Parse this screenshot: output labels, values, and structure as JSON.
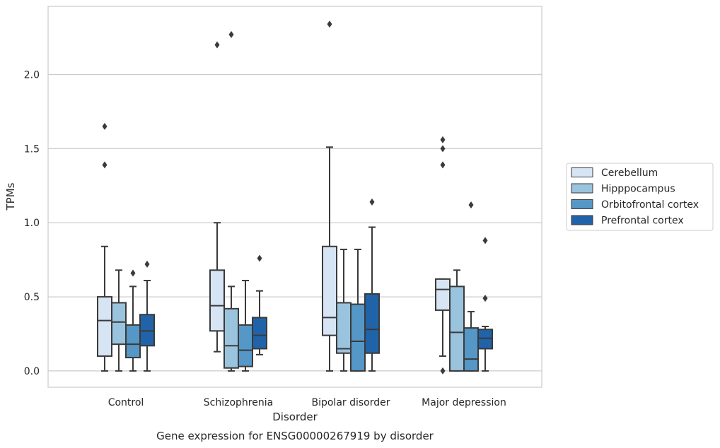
{
  "chart_data": {
    "type": "box",
    "xlabel": "Disorder",
    "ylabel": "TPMs",
    "caption": "Gene expression for ENSG00000267919 by disorder",
    "ylim": [
      -0.11,
      2.46
    ],
    "yticks": [
      "0.0",
      "0.5",
      "1.0",
      "1.5",
      "2.0"
    ],
    "grid": "horizontal",
    "legend_position": "right",
    "categories": [
      "Control",
      "Schizophrenia",
      "Bipolar disorder",
      "Major depression"
    ],
    "series": [
      {
        "name": "Cerebellum",
        "color": "#d6e4f3",
        "boxes": [
          {
            "whislo": 0.0,
            "q1": 0.1,
            "med": 0.34,
            "q3": 0.5,
            "whishi": 0.84,
            "fliers": [
              1.39,
              1.65
            ]
          },
          {
            "whislo": 0.13,
            "q1": 0.27,
            "med": 0.44,
            "q3": 0.68,
            "whishi": 1.0,
            "fliers": [
              2.2
            ]
          },
          {
            "whislo": 0.0,
            "q1": 0.24,
            "med": 0.36,
            "q3": 0.84,
            "whishi": 1.51,
            "fliers": [
              2.34
            ]
          },
          {
            "whislo": 0.1,
            "q1": 0.41,
            "med": 0.55,
            "q3": 0.62,
            "whishi": 0.62,
            "fliers": [
              0.0,
              1.39,
              1.5,
              1.56
            ]
          }
        ]
      },
      {
        "name": "Hipppocampus",
        "color": "#9ac3dd",
        "boxes": [
          {
            "whislo": 0.0,
            "q1": 0.18,
            "med": 0.33,
            "q3": 0.46,
            "whishi": 0.68,
            "fliers": []
          },
          {
            "whislo": 0.0,
            "q1": 0.02,
            "med": 0.17,
            "q3": 0.42,
            "whishi": 0.57,
            "fliers": [
              2.27
            ]
          },
          {
            "whislo": 0.0,
            "q1": 0.12,
            "med": 0.15,
            "q3": 0.46,
            "whishi": 0.82,
            "fliers": []
          },
          {
            "whislo": 0.0,
            "q1": 0.0,
            "med": 0.26,
            "q3": 0.57,
            "whishi": 0.68,
            "fliers": []
          }
        ]
      },
      {
        "name": "Orbitofrontal cortex",
        "color": "#5597c6",
        "boxes": [
          {
            "whislo": 0.0,
            "q1": 0.09,
            "med": 0.18,
            "q3": 0.31,
            "whishi": 0.57,
            "fliers": [
              0.66
            ]
          },
          {
            "whislo": 0.0,
            "q1": 0.03,
            "med": 0.14,
            "q3": 0.31,
            "whishi": 0.61,
            "fliers": []
          },
          {
            "whislo": 0.0,
            "q1": 0.0,
            "med": 0.2,
            "q3": 0.45,
            "whishi": 0.82,
            "fliers": []
          },
          {
            "whislo": 0.0,
            "q1": 0.0,
            "med": 0.08,
            "q3": 0.29,
            "whishi": 0.4,
            "fliers": [
              1.12
            ]
          }
        ]
      },
      {
        "name": "Prefrontal cortex",
        "color": "#2163a8",
        "boxes": [
          {
            "whislo": 0.0,
            "q1": 0.17,
            "med": 0.27,
            "q3": 0.38,
            "whishi": 0.61,
            "fliers": [
              0.72
            ]
          },
          {
            "whislo": 0.11,
            "q1": 0.15,
            "med": 0.24,
            "q3": 0.36,
            "whishi": 0.54,
            "fliers": [
              0.76
            ]
          },
          {
            "whislo": 0.0,
            "q1": 0.12,
            "med": 0.28,
            "q3": 0.52,
            "whishi": 0.97,
            "fliers": [
              1.14
            ]
          },
          {
            "whislo": 0.0,
            "q1": 0.15,
            "med": 0.22,
            "q3": 0.28,
            "whishi": 0.3,
            "fliers": [
              0.49,
              0.88
            ]
          }
        ]
      }
    ]
  }
}
